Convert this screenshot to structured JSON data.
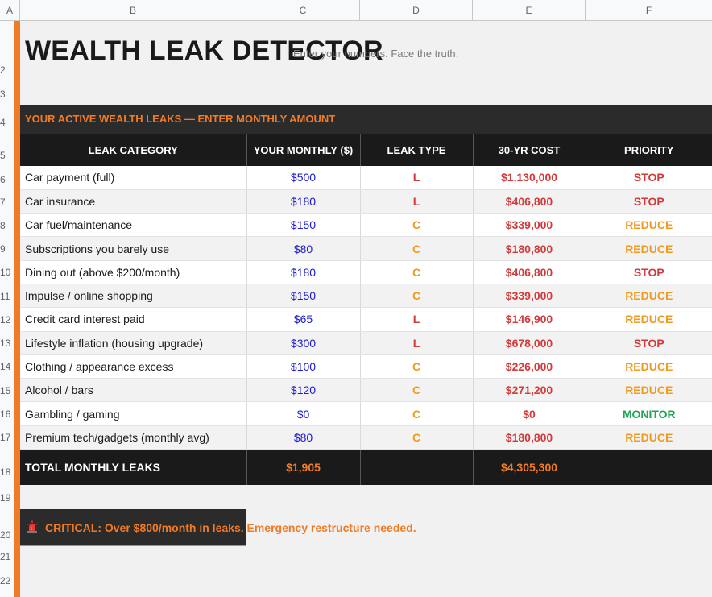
{
  "columns": [
    "A",
    "B",
    "C",
    "D",
    "E",
    "F"
  ],
  "rows": [
    "2",
    "3",
    "4",
    "5",
    "6",
    "7",
    "8",
    "9",
    "10",
    "11",
    "12",
    "13",
    "14",
    "15",
    "16",
    "17",
    "18",
    "19",
    "20",
    "21",
    "22"
  ],
  "title": "WEALTH LEAK DETECTOR",
  "subtitle": "Enter your numbers. Face the truth.",
  "section_title": "YOUR ACTIVE WEALTH LEAKS — ENTER MONTHLY AMOUNT",
  "headers": {
    "category": "LEAK CATEGORY",
    "monthly": "YOUR MONTHLY ($)",
    "type": "LEAK TYPE",
    "cost": "30-YR COST",
    "priority": "PRIORITY"
  },
  "leaks": [
    {
      "category": "Car payment (full)",
      "monthly": "$500",
      "type": "L",
      "cost": "$1,130,000",
      "priority": "STOP"
    },
    {
      "category": "Car insurance",
      "monthly": "$180",
      "type": "L",
      "cost": "$406,800",
      "priority": "STOP"
    },
    {
      "category": "Car fuel/maintenance",
      "monthly": "$150",
      "type": "C",
      "cost": "$339,000",
      "priority": "REDUCE"
    },
    {
      "category": "Subscriptions you barely use",
      "monthly": "$80",
      "type": "C",
      "cost": "$180,800",
      "priority": "REDUCE"
    },
    {
      "category": "Dining out (above $200/month)",
      "monthly": "$180",
      "type": "C",
      "cost": "$406,800",
      "priority": "STOP"
    },
    {
      "category": "Impulse / online shopping",
      "monthly": "$150",
      "type": "C",
      "cost": "$339,000",
      "priority": "REDUCE"
    },
    {
      "category": "Credit card interest paid",
      "monthly": "$65",
      "type": "L",
      "cost": "$146,900",
      "priority": "REDUCE"
    },
    {
      "category": "Lifestyle inflation (housing upgrade)",
      "monthly": "$300",
      "type": "L",
      "cost": "$678,000",
      "priority": "STOP"
    },
    {
      "category": "Clothing / appearance excess",
      "monthly": "$100",
      "type": "C",
      "cost": "$226,000",
      "priority": "REDUCE"
    },
    {
      "category": "Alcohol / bars",
      "monthly": "$120",
      "type": "C",
      "cost": "$271,200",
      "priority": "REDUCE"
    },
    {
      "category": "Gambling / gaming",
      "monthly": "$0",
      "type": "C",
      "cost": "$0",
      "priority": "MONITOR"
    },
    {
      "category": "Premium tech/gadgets (monthly avg)",
      "monthly": "$80",
      "type": "C",
      "cost": "$180,800",
      "priority": "REDUCE"
    }
  ],
  "totals": {
    "label": "TOTAL MONTHLY LEAKS",
    "monthly": "$1,905",
    "cost": "$4,305,300"
  },
  "alert": {
    "icon": "siren-icon",
    "text": "CRITICAL: Over $800/month in leaks. Emergency restructure needed."
  },
  "colors": {
    "accent": "#f07b26",
    "dark": "#1a1a1a",
    "stop": "#d23a3a",
    "reduce": "#f29a1e",
    "monitor": "#23a35a",
    "amount": "#1a1ad4"
  }
}
